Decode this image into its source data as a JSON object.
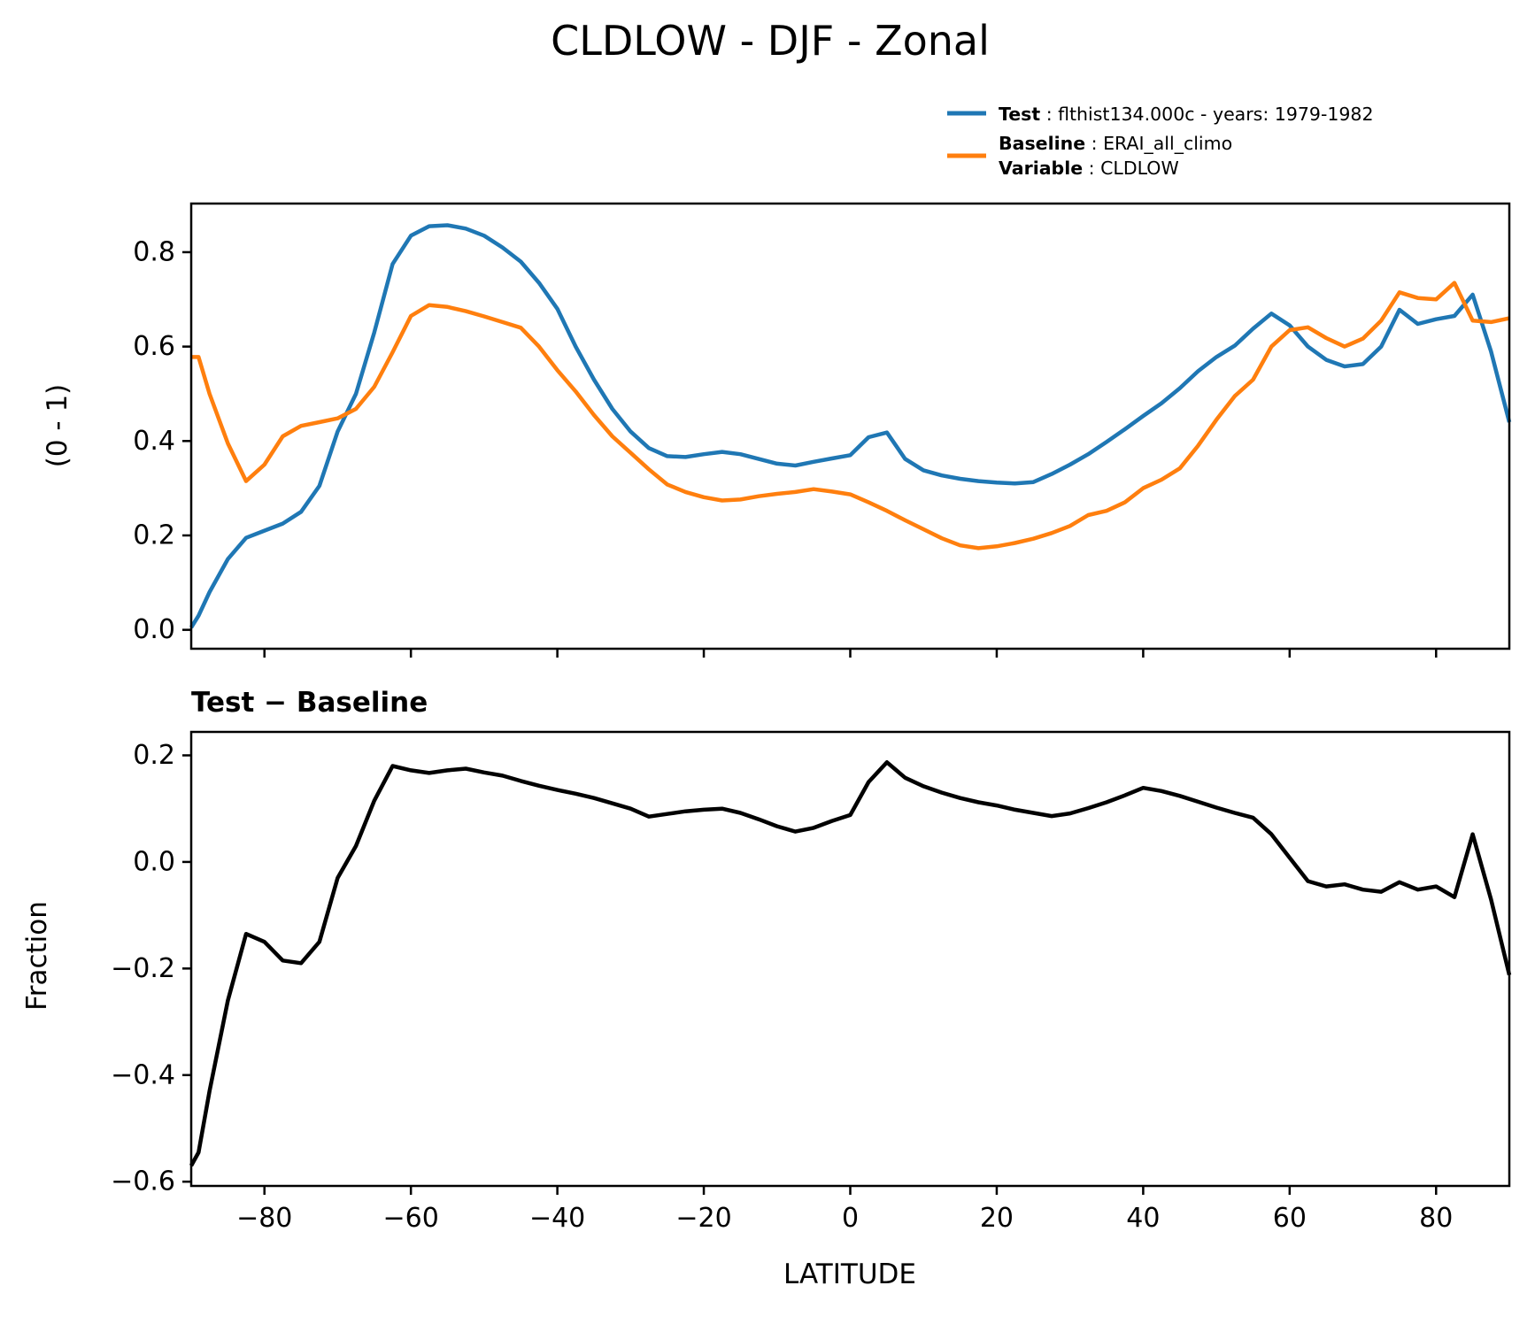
{
  "title": "CLDLOW - DJF - Zonal",
  "legend": {
    "test_label": "Test",
    "test_value": " : flthist134.000c - years: 1979-1982",
    "baseline_label": "Baseline",
    "baseline_value": " : ERAI_all_climo",
    "variable_label": "Variable",
    "variable_value": " : CLDLOW"
  },
  "colors": {
    "test": "#1f77b4",
    "baseline": "#ff7f0e",
    "diff": "#000000",
    "axis": "#000000"
  },
  "chart_data": [
    {
      "type": "line",
      "id": "zonal-mean",
      "title": "CLDLOW - DJF - Zonal",
      "xlabel": "",
      "ylabel": "(0 - 1)",
      "xlim": [
        -90,
        90
      ],
      "ylim": [
        -0.04,
        0.903
      ],
      "grid": false,
      "legend_position": "upper right (above axes)",
      "yticks": {
        "values": [
          0.0,
          0.2,
          0.4,
          0.6,
          0.8
        ],
        "labels": [
          "0.0",
          "0.2",
          "0.4",
          "0.6",
          "0.8"
        ]
      },
      "xticks": {
        "values": [
          -80,
          -60,
          -40,
          -20,
          0,
          20,
          40,
          60,
          80
        ],
        "labels": [
          "",
          "",
          "",
          "",
          "",
          "",
          "",
          "",
          ""
        ]
      },
      "x": [
        -90,
        -89,
        -87.5,
        -85,
        -82.5,
        -80,
        -77.5,
        -75,
        -72.5,
        -70,
        -67.5,
        -65,
        -62.5,
        -60,
        -57.5,
        -55,
        -52.5,
        -50,
        -47.5,
        -45,
        -42.5,
        -40,
        -37.5,
        -35,
        -32.5,
        -30,
        -27.5,
        -25,
        -22.5,
        -20,
        -17.5,
        -15,
        -12.5,
        -10,
        -7.5,
        -5,
        -2.5,
        0,
        2.5,
        5,
        7.5,
        10,
        12.5,
        15,
        17.5,
        20,
        22.5,
        25,
        27.5,
        30,
        32.5,
        35,
        37.5,
        40,
        42.5,
        45,
        47.5,
        50,
        52.5,
        55,
        57.5,
        60,
        62.5,
        65,
        67.5,
        70,
        72.5,
        75,
        77.5,
        80,
        82.5,
        85,
        87.5,
        90
      ],
      "series": [
        {
          "name": "Test",
          "color_key": "test",
          "values": [
            0.005,
            0.03,
            0.08,
            0.15,
            0.195,
            0.21,
            0.225,
            0.25,
            0.305,
            0.42,
            0.5,
            0.63,
            0.775,
            0.835,
            0.855,
            0.857,
            0.85,
            0.835,
            0.81,
            0.78,
            0.735,
            0.68,
            0.6,
            0.53,
            0.468,
            0.42,
            0.385,
            0.368,
            0.366,
            0.372,
            0.377,
            0.372,
            0.362,
            0.352,
            0.348,
            0.356,
            0.363,
            0.37,
            0.408,
            0.418,
            0.362,
            0.338,
            0.327,
            0.32,
            0.315,
            0.312,
            0.31,
            0.313,
            0.33,
            0.35,
            0.372,
            0.398,
            0.425,
            0.453,
            0.48,
            0.512,
            0.548,
            0.578,
            0.602,
            0.638,
            0.67,
            0.645,
            0.6,
            0.572,
            0.558,
            0.563,
            0.6,
            0.678,
            0.648,
            0.658,
            0.665,
            0.71,
            0.59,
            0.44
          ]
        },
        {
          "name": "Baseline",
          "color_key": "baseline",
          "values": [
            0.578,
            0.578,
            0.5,
            0.395,
            0.315,
            0.35,
            0.41,
            0.432,
            0.44,
            0.448,
            0.468,
            0.515,
            0.588,
            0.665,
            0.688,
            0.684,
            0.675,
            0.664,
            0.652,
            0.64,
            0.6,
            0.55,
            0.505,
            0.455,
            0.41,
            0.375,
            0.34,
            0.308,
            0.292,
            0.281,
            0.274,
            0.276,
            0.283,
            0.288,
            0.292,
            0.298,
            0.293,
            0.287,
            0.27,
            0.252,
            0.232,
            0.213,
            0.194,
            0.179,
            0.173,
            0.177,
            0.184,
            0.193,
            0.205,
            0.22,
            0.243,
            0.252,
            0.27,
            0.3,
            0.318,
            0.342,
            0.39,
            0.445,
            0.495,
            0.53,
            0.6,
            0.635,
            0.641,
            0.618,
            0.6,
            0.617,
            0.655,
            0.715,
            0.703,
            0.7,
            0.735,
            0.655,
            0.652,
            0.66
          ]
        }
      ]
    },
    {
      "type": "line",
      "id": "difference",
      "title": "Test − Baseline",
      "xlabel": "LATITUDE",
      "ylabel": "Fraction",
      "xlim": [
        -90,
        90
      ],
      "ylim": [
        -0.608,
        0.244
      ],
      "grid": false,
      "yticks": {
        "values": [
          0.2,
          0.0,
          -0.2,
          -0.4,
          -0.6
        ],
        "labels": [
          "0.2",
          "0.0",
          "−0.2",
          "−0.4",
          "−0.6"
        ]
      },
      "xticks": {
        "values": [
          -80,
          -60,
          -40,
          -20,
          0,
          20,
          40,
          60,
          80
        ],
        "labels": [
          "−80",
          "−60",
          "−40",
          "−20",
          "0",
          "20",
          "40",
          "60",
          "80"
        ]
      },
      "x": [
        -90,
        -89,
        -87.5,
        -85,
        -82.5,
        -80,
        -77.5,
        -75,
        -72.5,
        -70,
        -67.5,
        -65,
        -62.5,
        -60,
        -57.5,
        -55,
        -52.5,
        -50,
        -47.5,
        -45,
        -42.5,
        -40,
        -37.5,
        -35,
        -32.5,
        -30,
        -27.5,
        -25,
        -22.5,
        -20,
        -17.5,
        -15,
        -12.5,
        -10,
        -7.5,
        -5,
        -2.5,
        0,
        2.5,
        5,
        7.5,
        10,
        12.5,
        15,
        17.5,
        20,
        22.5,
        25,
        27.5,
        30,
        32.5,
        35,
        37.5,
        40,
        42.5,
        45,
        47.5,
        50,
        52.5,
        55,
        57.5,
        60,
        62.5,
        65,
        67.5,
        70,
        72.5,
        75,
        77.5,
        80,
        82.5,
        85,
        87.5,
        90
      ],
      "series": [
        {
          "name": "Test − Baseline",
          "color_key": "diff",
          "values": [
            -0.57,
            -0.545,
            -0.43,
            -0.26,
            -0.135,
            -0.15,
            -0.185,
            -0.19,
            -0.15,
            -0.03,
            0.03,
            0.115,
            0.18,
            0.172,
            0.167,
            0.172,
            0.175,
            0.168,
            0.162,
            0.152,
            0.143,
            0.135,
            0.128,
            0.12,
            0.11,
            0.1,
            0.085,
            0.09,
            0.095,
            0.098,
            0.1,
            0.092,
            0.08,
            0.067,
            0.057,
            0.064,
            0.077,
            0.088,
            0.15,
            0.187,
            0.158,
            0.142,
            0.13,
            0.12,
            0.112,
            0.106,
            0.098,
            0.092,
            0.086,
            0.091,
            0.101,
            0.112,
            0.125,
            0.139,
            0.133,
            0.124,
            0.113,
            0.102,
            0.092,
            0.083,
            0.052,
            0.008,
            -0.036,
            -0.046,
            -0.042,
            -0.052,
            -0.056,
            -0.038,
            -0.052,
            -0.046,
            -0.066,
            0.052,
            -0.07,
            -0.212
          ]
        }
      ]
    }
  ]
}
